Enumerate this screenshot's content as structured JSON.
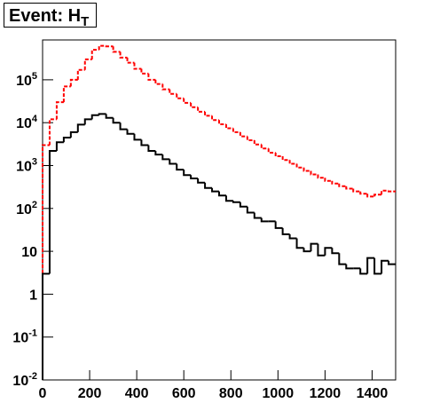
{
  "chart_data": {
    "type": "histogram",
    "title": "Event: H",
    "title_subscript": "T",
    "bins": [
      0,
      30,
      60,
      90,
      120,
      150,
      180,
      210,
      240,
      270,
      300,
      330,
      360,
      390,
      420,
      450,
      480,
      510,
      540,
      570,
      600,
      630,
      660,
      690,
      720,
      750,
      780,
      810,
      840,
      870,
      900,
      930,
      960,
      990,
      1020,
      1050,
      1080,
      1110,
      1140,
      1170,
      1200,
      1230,
      1260,
      1290,
      1320,
      1350,
      1380,
      1410,
      1440,
      1470,
      1500
    ],
    "series": [
      {
        "color": "#ff0000",
        "dashed": true,
        "values": [
          3000,
          12000,
          30000,
          70000,
          100000,
          170000,
          300000,
          500000,
          620000,
          600000,
          450000,
          330000,
          250000,
          180000,
          140000,
          100000,
          80000,
          60000,
          47000,
          37000,
          29000,
          23000,
          18000,
          14500,
          11500,
          9200,
          7400,
          6000,
          4800,
          3900,
          3100,
          2500,
          2000,
          1650,
          1350,
          1100,
          900,
          750,
          620,
          520,
          440,
          380,
          330,
          290,
          250,
          220,
          190,
          210,
          260,
          250
        ]
      },
      {
        "color": "#000000",
        "dashed": false,
        "values": [
          3,
          2200,
          3500,
          4500,
          6000,
          9000,
          12000,
          15000,
          16000,
          13000,
          10000,
          7000,
          5500,
          4000,
          3000,
          2200,
          1800,
          1400,
          1100,
          800,
          600,
          500,
          400,
          300,
          250,
          200,
          150,
          140,
          110,
          80,
          60,
          50,
          50,
          35,
          25,
          20,
          12,
          10,
          15,
          8,
          12,
          9,
          5,
          4,
          4,
          3,
          7,
          3,
          6,
          5
        ]
      }
    ],
    "xlim": [
      0,
      1500
    ],
    "xticks": [
      0,
      200,
      400,
      600,
      800,
      1000,
      1200,
      1400
    ],
    "ylim": [
      0.01,
      850000
    ],
    "log_y": true,
    "yticks": [
      {
        "value": 0.01,
        "label": "10",
        "exponent": "-2"
      },
      {
        "value": 0.1,
        "label": "10",
        "exponent": "-1"
      },
      1,
      10,
      {
        "value": 100,
        "label": "10",
        "exponent": "2"
      },
      {
        "value": 1000,
        "label": "10",
        "exponent": "3"
      },
      {
        "value": 10000,
        "label": "10",
        "exponent": "4"
      },
      {
        "value": 100000,
        "label": "10",
        "exponent": "5"
      }
    ]
  }
}
